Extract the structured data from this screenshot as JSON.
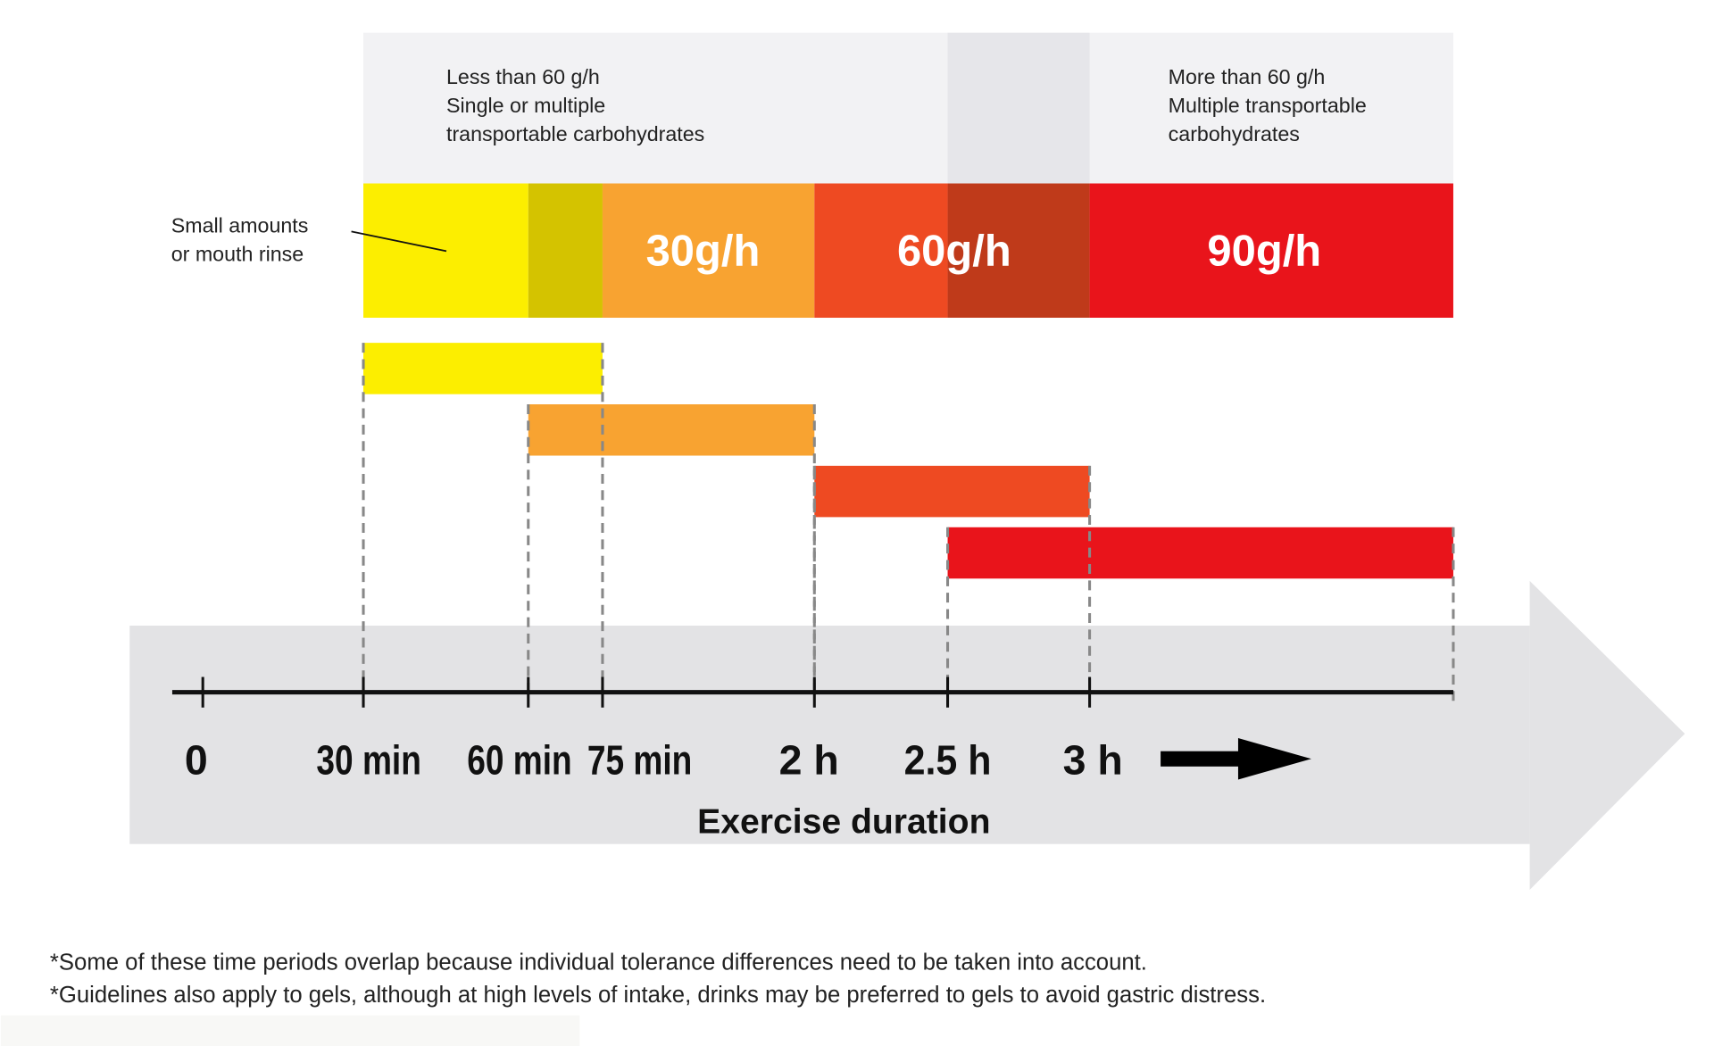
{
  "header": {
    "left_lines": [
      "Less than 60 g/h",
      "Single or multiple",
      "transportable carbohydrates"
    ],
    "right_lines": [
      "More than 60 g/h",
      "Multiple transportable",
      "carbohydrates"
    ]
  },
  "callout": {
    "lines": [
      "Small amounts",
      "or mouth rinse"
    ]
  },
  "rate_band": [
    {
      "from": 30,
      "to": 60,
      "color": "#FCEE00",
      "label": ""
    },
    {
      "from": 60,
      "to": 75,
      "color": "#D4C300",
      "label": ""
    },
    {
      "from": 75,
      "to": 120,
      "color": "#F8A331",
      "label": "30g/h"
    },
    {
      "from": 120,
      "to": 150,
      "color": "#EE4A22",
      "label": "60g/h"
    },
    {
      "from": 150,
      "to": 180,
      "color": "#BF3A1A",
      "label": ""
    },
    {
      "from": 180,
      "to": "end",
      "color": "#E9141B",
      "label": "90g/h"
    }
  ],
  "bars": [
    {
      "from": 30,
      "to": 75,
      "color": "#FCEE00"
    },
    {
      "from": 60,
      "to": 120,
      "color": "#F8A331"
    },
    {
      "from": 120,
      "to": 180,
      "color": "#EE4A22"
    },
    {
      "from": 150,
      "to": "end",
      "color": "#E9141B"
    }
  ],
  "axis": {
    "title": "Exercise duration",
    "ticks": [
      {
        "minutes": 0,
        "label": "0"
      },
      {
        "minutes": 30,
        "label": "30 min"
      },
      {
        "minutes": 60,
        "label": "60 min"
      },
      {
        "minutes": 75,
        "label": "75 min"
      },
      {
        "minutes": 120,
        "label": "2 h"
      },
      {
        "minutes": 150,
        "label": "2.5 h"
      },
      {
        "minutes": 180,
        "label": "3 h"
      }
    ]
  },
  "colors": {
    "header_bg": "#F2F2F4",
    "header_overlap": "#E6E6EA",
    "axis_band": "#E3E3E5",
    "dash": "#888888"
  },
  "footnotes": [
    "*Some of these time periods overlap because individual tolerance differences need to be taken into account.",
    "*Guidelines also apply to gels, although at high levels of intake, drinks may be preferred to gels to avoid gastric distress."
  ]
}
